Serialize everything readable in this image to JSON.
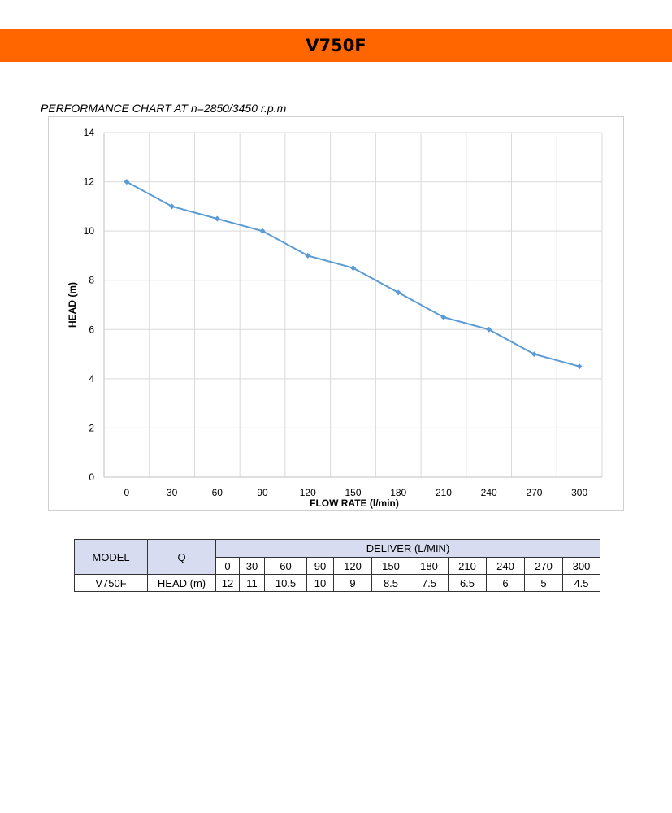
{
  "header": {
    "title": "V750F",
    "accent": "#ff6600"
  },
  "chart_title": "PERFORMANCE CHART AT n=2850/3450 r.p.m",
  "chart_data": {
    "type": "line",
    "title": "PERFORMANCE CHART AT n=2850/3450 r.p.m",
    "xlabel": "FLOW RATE (l/min)",
    "ylabel": "HEAD (m)",
    "categories": [
      "0",
      "30",
      "60",
      "90",
      "120",
      "150",
      "180",
      "210",
      "240",
      "270",
      "300"
    ],
    "x": [
      0,
      30,
      60,
      90,
      120,
      150,
      180,
      210,
      240,
      270,
      300
    ],
    "series": [
      {
        "name": "V750F",
        "values": [
          12,
          11,
          10.5,
          10,
          9,
          8.5,
          7.5,
          6.5,
          6,
          5,
          4.5
        ],
        "color": "#5b9bd5"
      }
    ],
    "yticks": [
      "0",
      "2",
      "4",
      "6",
      "8",
      "10",
      "12",
      "14"
    ],
    "ylim": [
      0,
      14
    ],
    "grid": true
  },
  "table": {
    "model_header": "MODEL",
    "q_header": "Q",
    "deliver_header": "DELIVER (L/MIN)",
    "flows": [
      "0",
      "30",
      "60",
      "90",
      "120",
      "150",
      "180",
      "210",
      "240",
      "270",
      "300"
    ],
    "row": {
      "model": "V750F",
      "label": "HEAD (m)",
      "values": [
        "12",
        "11",
        "10.5",
        "10",
        "9",
        "8.5",
        "7.5",
        "6.5",
        "6",
        "5",
        "4.5"
      ]
    }
  }
}
